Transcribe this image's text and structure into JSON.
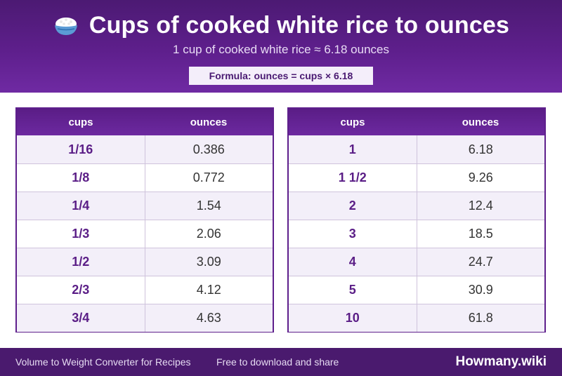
{
  "header": {
    "icon": "rice-bowl-icon",
    "title": "Cups of cooked white rice to ounces",
    "subtitle": "1 cup of cooked white rice ≈ 6.18 ounces",
    "formula": "Formula: ounces = cups × 6.18"
  },
  "tables": [
    {
      "headers": [
        "cups",
        "ounces"
      ],
      "rows": [
        [
          "1/16",
          "0.386"
        ],
        [
          "1/8",
          "0.772"
        ],
        [
          "1/4",
          "1.54"
        ],
        [
          "1/3",
          "2.06"
        ],
        [
          "1/2",
          "3.09"
        ],
        [
          "2/3",
          "4.12"
        ],
        [
          "3/4",
          "4.63"
        ]
      ]
    },
    {
      "headers": [
        "cups",
        "ounces"
      ],
      "rows": [
        [
          "1",
          "6.18"
        ],
        [
          "1 1/2",
          "9.26"
        ],
        [
          "2",
          "12.4"
        ],
        [
          "3",
          "18.5"
        ],
        [
          "4",
          "24.7"
        ],
        [
          "5",
          "30.9"
        ],
        [
          "10",
          "61.8"
        ]
      ]
    }
  ],
  "footer": {
    "left_text": "Volume to Weight Converter for Recipes",
    "middle_text": "Free to download and share",
    "brand": "Howmany.wiki"
  },
  "colors": {
    "header_purple": "#5e1f8c",
    "footer_purple": "#4a1a6e",
    "accent_text": "#5a1d86"
  }
}
